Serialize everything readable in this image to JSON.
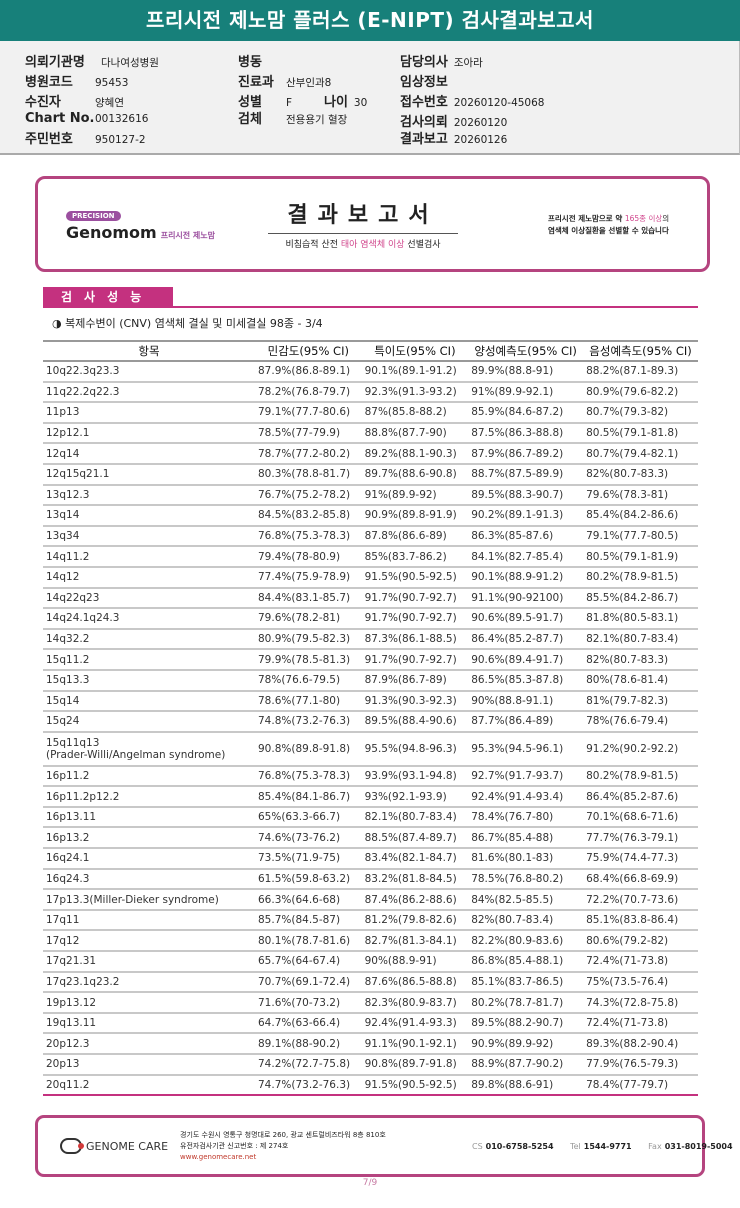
{
  "title": "프리시전 제노맘 플러스 (E-NIPT) 검사결과보고서",
  "info": {
    "hospital_label": "의뢰기관명",
    "hospital": "다나여성병원",
    "code_label": "병원코드",
    "code": "95453",
    "patient_label": "수진자",
    "patient": "양혜연",
    "chart_label": "Chart No.",
    "chart": "00132616",
    "id_label": "주민번호",
    "id": "950127-2",
    "ward_label": "병동",
    "ward": "",
    "dept_label": "진료과",
    "dept": "산부인과8",
    "sex_label": "성별",
    "sex": "F",
    "age_label": "나이",
    "age": "30",
    "specimen_label": "검체",
    "specimen": "전용용기 혈장",
    "doctor_label": "담당의사",
    "doctor": "조아라",
    "clinical_label": "임상정보",
    "clinical": "",
    "receipt_label": "접수번호",
    "receipt": "20260120-45068",
    "request_label": "검사의뢰",
    "request": "20260120",
    "report_label": "결과보고",
    "report": "20260126"
  },
  "banner": {
    "precision": "PRECISION",
    "brand": "Genomom",
    "brand_kr": "프리시전 제노맘",
    "title": "결과보고서",
    "sub_a": "비침습적 산전 ",
    "sub_b": "태아 염색체 이상",
    "sub_c": " 선별검사",
    "note_a": "프리시전 제노맘으로 약 ",
    "note_b": "165종 이상",
    "note_c": "의",
    "note_d": "염색체 이상질환을 선별할 수 있습니다"
  },
  "section": {
    "title": "검사성능",
    "subtitle": "◑ 복제수변이 (CNV) 염색체 결실 및 미세결실 98종 - 3/4"
  },
  "table": {
    "headers": [
      "항목",
      "민감도(95% CI)",
      "특이도(95% CI)",
      "양성예측도(95% CI)",
      "음성예측도(95% CI)"
    ],
    "rows": [
      [
        "10q22.3q23.3",
        "87.9%(86.8-89.1)",
        "90.1%(89.1-91.2)",
        "89.9%(88.8-91)",
        "88.2%(87.1-89.3)"
      ],
      [
        "11q22.2q22.3",
        "78.2%(76.8-79.7)",
        "92.3%(91.3-93.2)",
        "91%(89.9-92.1)",
        "80.9%(79.6-82.2)"
      ],
      [
        "11p13",
        "79.1%(77.7-80.6)",
        "87%(85.8-88.2)",
        "85.9%(84.6-87.2)",
        "80.7%(79.3-82)"
      ],
      [
        "12p12.1",
        "78.5%(77-79.9)",
        "88.8%(87.7-90)",
        "87.5%(86.3-88.8)",
        "80.5%(79.1-81.8)"
      ],
      [
        "12q14",
        "78.7%(77.2-80.2)",
        "89.2%(88.1-90.3)",
        "87.9%(86.7-89.2)",
        "80.7%(79.4-82.1)"
      ],
      [
        "12q15q21.1",
        "80.3%(78.8-81.7)",
        "89.7%(88.6-90.8)",
        "88.7%(87.5-89.9)",
        "82%(80.7-83.3)"
      ],
      [
        "13q12.3",
        "76.7%(75.2-78.2)",
        "91%(89.9-92)",
        "89.5%(88.3-90.7)",
        "79.6%(78.3-81)"
      ],
      [
        "13q14",
        "84.5%(83.2-85.8)",
        "90.9%(89.8-91.9)",
        "90.2%(89.1-91.3)",
        "85.4%(84.2-86.6)"
      ],
      [
        "13q34",
        "76.8%(75.3-78.3)",
        "87.8%(86.6-89)",
        "86.3%(85-87.6)",
        "79.1%(77.7-80.5)"
      ],
      [
        "14q11.2",
        "79.4%(78-80.9)",
        "85%(83.7-86.2)",
        "84.1%(82.7-85.4)",
        "80.5%(79.1-81.9)"
      ],
      [
        "14q12",
        "77.4%(75.9-78.9)",
        "91.5%(90.5-92.5)",
        "90.1%(88.9-91.2)",
        "80.2%(78.9-81.5)"
      ],
      [
        "14q22q23",
        "84.4%(83.1-85.7)",
        "91.7%(90.7-92.7)",
        "91.1%(90-92100)",
        "85.5%(84.2-86.7)"
      ],
      [
        "14q24.1q24.3",
        "79.6%(78.2-81)",
        "91.7%(90.7-92.7)",
        "90.6%(89.5-91.7)",
        "81.8%(80.5-83.1)"
      ],
      [
        "14q32.2",
        "80.9%(79.5-82.3)",
        "87.3%(86.1-88.5)",
        "86.4%(85.2-87.7)",
        "82.1%(80.7-83.4)"
      ],
      [
        "15q11.2",
        "79.9%(78.5-81.3)",
        "91.7%(90.7-92.7)",
        "90.6%(89.4-91.7)",
        "82%(80.7-83.3)"
      ],
      [
        "15q13.3",
        "78%(76.6-79.5)",
        "87.9%(86.7-89)",
        "86.5%(85.3-87.8)",
        "80%(78.6-81.4)"
      ],
      [
        "15q14",
        "78.6%(77.1-80)",
        "91.3%(90.3-92.3)",
        "90%(88.8-91.1)",
        "81%(79.7-82.3)"
      ],
      [
        "15q24",
        "74.8%(73.2-76.3)",
        "89.5%(88.4-90.6)",
        "87.7%(86.4-89)",
        "78%(76.6-79.4)"
      ],
      [
        "15q11q13\n(Prader-Willi/Angelman syndrome)",
        "90.8%(89.8-91.8)",
        "95.5%(94.8-96.3)",
        "95.3%(94.5-96.1)",
        "91.2%(90.2-92.2)"
      ],
      [
        "16p11.2",
        "76.8%(75.3-78.3)",
        "93.9%(93.1-94.8)",
        "92.7%(91.7-93.7)",
        "80.2%(78.9-81.5)"
      ],
      [
        "16p11.2p12.2",
        "85.4%(84.1-86.7)",
        "93%(92.1-93.9)",
        "92.4%(91.4-93.4)",
        "86.4%(85.2-87.6)"
      ],
      [
        "16p13.11",
        "65%(63.3-66.7)",
        "82.1%(80.7-83.4)",
        "78.4%(76.7-80)",
        "70.1%(68.6-71.6)"
      ],
      [
        "16p13.2",
        "74.6%(73-76.2)",
        "88.5%(87.4-89.7)",
        "86.7%(85.4-88)",
        "77.7%(76.3-79.1)"
      ],
      [
        "16q24.1",
        "73.5%(71.9-75)",
        "83.4%(82.1-84.7)",
        "81.6%(80.1-83)",
        "75.9%(74.4-77.3)"
      ],
      [
        "16q24.3",
        "61.5%(59.8-63.2)",
        "83.2%(81.8-84.5)",
        "78.5%(76.8-80.2)",
        "68.4%(66.8-69.9)"
      ],
      [
        "17p13.3(Miller-Dieker syndrome)",
        "66.3%(64.6-68)",
        "87.4%(86.2-88.6)",
        "84%(82.5-85.5)",
        "72.2%(70.7-73.6)"
      ],
      [
        "17q11",
        "85.7%(84.5-87)",
        "81.2%(79.8-82.6)",
        "82%(80.7-83.4)",
        "85.1%(83.8-86.4)"
      ],
      [
        "17q12",
        "80.1%(78.7-81.6)",
        "82.7%(81.3-84.1)",
        "82.2%(80.9-83.6)",
        "80.6%(79.2-82)"
      ],
      [
        "17q21.31",
        "65.7%(64-67.4)",
        "90%(88.9-91)",
        "86.8%(85.4-88.1)",
        "72.4%(71-73.8)"
      ],
      [
        "17q23.1q23.2",
        "70.7%(69.1-72.4)",
        "87.6%(86.5-88.8)",
        "85.1%(83.7-86.5)",
        "75%(73.5-76.4)"
      ],
      [
        "19p13.12",
        "71.6%(70-73.2)",
        "82.3%(80.9-83.7)",
        "80.2%(78.7-81.7)",
        "74.3%(72.8-75.8)"
      ],
      [
        "19q13.11",
        "64.7%(63-66.4)",
        "92.4%(91.4-93.3)",
        "89.5%(88.2-90.7)",
        "72.4%(71-73.8)"
      ],
      [
        "20p12.3",
        "89.1%(88-90.2)",
        "91.1%(90.1-92.1)",
        "90.9%(89.9-92)",
        "89.3%(88.2-90.4)"
      ],
      [
        "20p13",
        "74.2%(72.7-75.8)",
        "90.8%(89.7-91.8)",
        "88.9%(87.7-90.2)",
        "77.9%(76.5-79.3)"
      ],
      [
        "20q11.2",
        "74.7%(73.2-76.3)",
        "91.5%(90.5-92.5)",
        "89.8%(88.6-91)",
        "78.4%(77-79.7)"
      ]
    ]
  },
  "footer": {
    "logo": "GENOME CARE",
    "address": "경기도 수원시 영통구 청명대로 260, 광교 센트럴비즈타워 8층 810호",
    "license": "유전자검사기관 신고번호 : 제 274호",
    "url": "www.genomecare.net",
    "cs_label": "CS",
    "cs": "010-6758-5254",
    "tel_label": "Tel",
    "tel": "1544-9771",
    "fax_label": "Fax",
    "fax": "031-8019-5004"
  },
  "page": "7/9",
  "colors": {
    "title_bar": "#17807a",
    "accent": "#c4317f",
    "border": "#b5447f"
  }
}
